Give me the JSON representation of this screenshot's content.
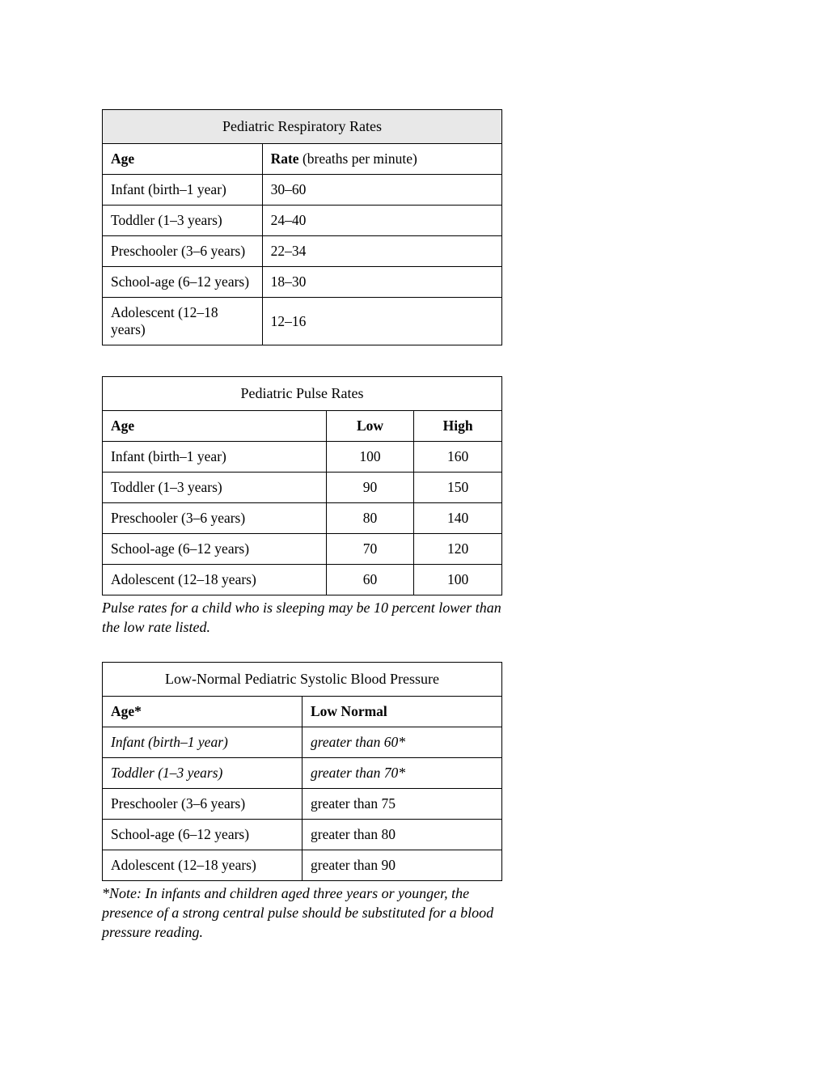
{
  "respiratory_table": {
    "title": "Pediatric Respiratory Rates",
    "headers": {
      "age": "Age",
      "rate_bold": "Rate",
      "rate_rest": " (breaths per minute)"
    },
    "rows": [
      {
        "age": "Infant (birth–1 year)",
        "rate": "30–60"
      },
      {
        "age": "Toddler (1–3 years)",
        "rate": "24–40"
      },
      {
        "age": "Preschooler (3–6 years)",
        "rate": "22–34"
      },
      {
        "age": "School-age (6–12 years)",
        "rate": "18–30"
      },
      {
        "age": "Adolescent (12–18 years)",
        "rate": "12–16"
      }
    ]
  },
  "pulse_table": {
    "title": "Pediatric Pulse Rates",
    "headers": {
      "age": "Age",
      "low": "Low",
      "high": "High"
    },
    "rows": [
      {
        "age": "Infant (birth–1 year)",
        "low": "100",
        "high": "160"
      },
      {
        "age": "Toddler (1–3 years)",
        "low": "90",
        "high": "150"
      },
      {
        "age": "Preschooler (3–6 years)",
        "low": "80",
        "high": "140"
      },
      {
        "age": "School-age (6–12 years)",
        "low": "70",
        "high": "120"
      },
      {
        "age": "Adolescent (12–18 years)",
        "low": "60",
        "high": "100"
      }
    ],
    "footnote": "Pulse rates for a child who is sleeping may be 10 percent lower than the low rate listed."
  },
  "bp_table": {
    "title": "Low-Normal Pediatric Systolic Blood Pressure",
    "headers": {
      "age": "Age*",
      "low_normal": "Low Normal"
    },
    "rows": [
      {
        "age": "Infant (birth–1 year)",
        "value": "greater than 60*",
        "italic": true
      },
      {
        "age": "Toddler (1–3 years)",
        "value": "greater than 70*",
        "italic": true
      },
      {
        "age": "Preschooler (3–6 years)",
        "value": "greater than 75",
        "italic": false
      },
      {
        "age": "School-age (6–12 years)",
        "value": "greater than 80",
        "italic": false
      },
      {
        "age": "Adolescent (12–18 years)",
        "value": "greater than 90",
        "italic": false
      }
    ],
    "footnote": "*Note: In infants and children aged three years or younger, the presence of a strong central pulse should be substituted for a blood pressure reading."
  },
  "styles": {
    "border_color": "#000000",
    "shaded_bg": "#e8e8e8",
    "page_bg": "#ffffff",
    "font_family": "Times New Roman",
    "base_font_size": 17.5
  }
}
